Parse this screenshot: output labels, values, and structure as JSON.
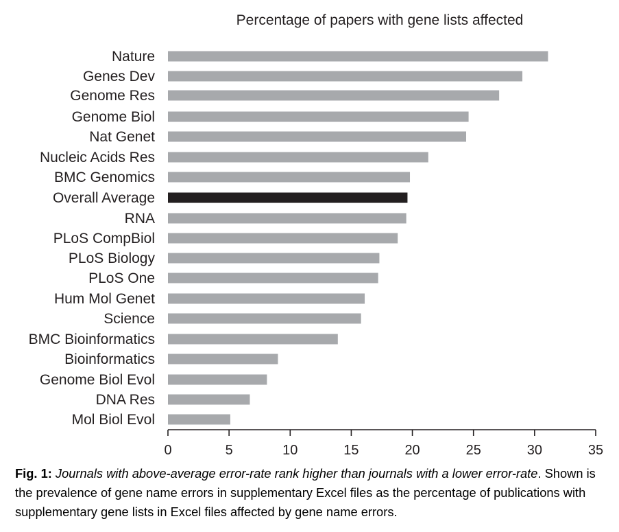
{
  "chart_data": {
    "type": "bar",
    "orientation": "horizontal",
    "title": "Percentage of papers with gene lists affected",
    "xlabel": "",
    "ylabel": "",
    "xlim": [
      0,
      35
    ],
    "x_ticks": [
      0,
      5,
      10,
      15,
      20,
      25,
      30,
      35
    ],
    "grid": false,
    "highlight_category": "Overall Average",
    "highlight_color": "#231f20",
    "bar_color": "#a7a9ac",
    "categories": [
      "Nature",
      "Genes Dev",
      "Genome Res",
      "Genome Biol",
      "Nat Genet",
      "Nucleic Acids Res",
      "BMC Genomics",
      "Overall Average",
      "RNA",
      "PLoS CompBiol",
      "PLoS Biology",
      "PLoS One",
      "Hum Mol Genet",
      "Science",
      "BMC Bioinformatics",
      "Bioinformatics",
      "Genome Biol Evol",
      "DNA Res",
      "Mol Biol Evol"
    ],
    "values": [
      31.1,
      29.0,
      27.1,
      24.6,
      24.4,
      21.3,
      19.8,
      19.6,
      19.5,
      18.8,
      17.3,
      17.2,
      16.1,
      15.8,
      13.9,
      9.0,
      8.1,
      6.7,
      5.1
    ]
  },
  "caption": {
    "label": "Fig. 1:",
    "title": "Journals with above-average error-rate rank higher than journals with a lower error-rate",
    "title_end": ".",
    "body": "Shown is the prevalence of gene name errors in supplementary Excel files as the percentage of publications with supplementary gene lists in Excel files affected by gene name errors."
  }
}
